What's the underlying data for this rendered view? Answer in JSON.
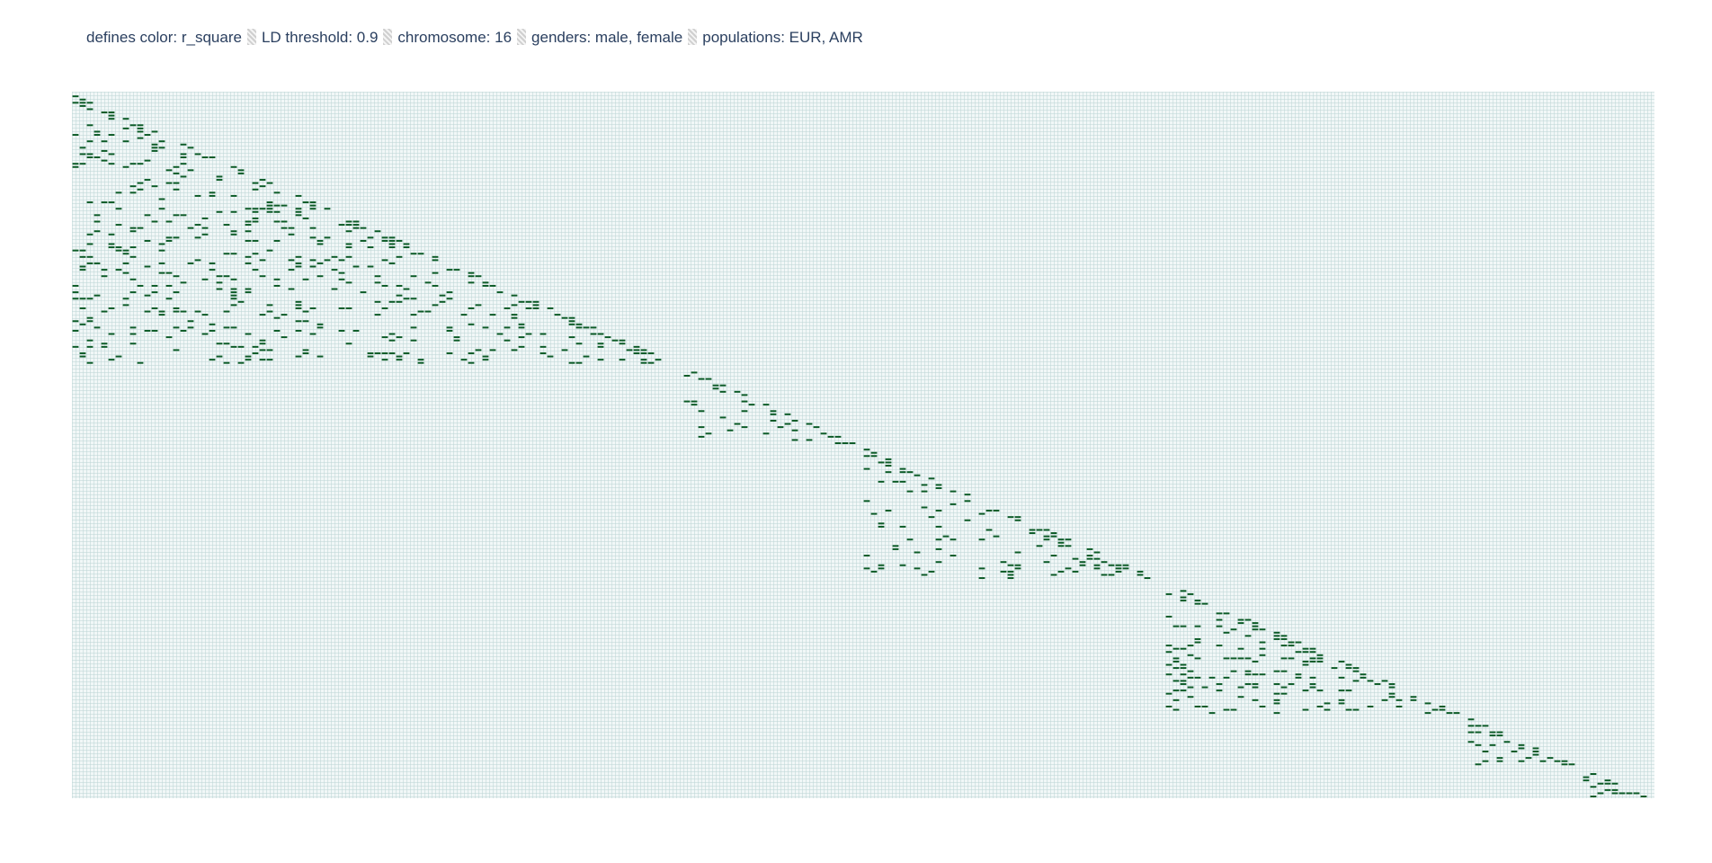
{
  "header": {
    "parts": [
      "defines color: r_square",
      "LD threshold: 0.9",
      "chromosome: 16",
      "genders: male, female",
      "populations: EUR, AMR"
    ]
  },
  "colors": {
    "plot_bg": "#f1f7f7",
    "grid": "#bed7d7",
    "cell": "#0b5a26",
    "text": "#2a3f5f"
  },
  "chart_data": {
    "type": "heatmap",
    "color_metric": "r_square",
    "ld_threshold": 0.9,
    "chromosome": 16,
    "genders": [
      "male",
      "female"
    ],
    "populations": [
      "EUR",
      "AMR"
    ],
    "n_variants": 220,
    "variant_blocks": [
      {
        "start": 0,
        "end": 85,
        "density": 0.32
      },
      {
        "start": 85,
        "end": 110,
        "density": 0.28
      },
      {
        "start": 110,
        "end": 152,
        "density": 0.34
      },
      {
        "start": 152,
        "end": 194,
        "density": 0.45
      },
      {
        "start": 194,
        "end": 210,
        "density": 0.6
      },
      {
        "start": 210,
        "end": 220,
        "density": 0.7
      }
    ],
    "grid": true
  }
}
